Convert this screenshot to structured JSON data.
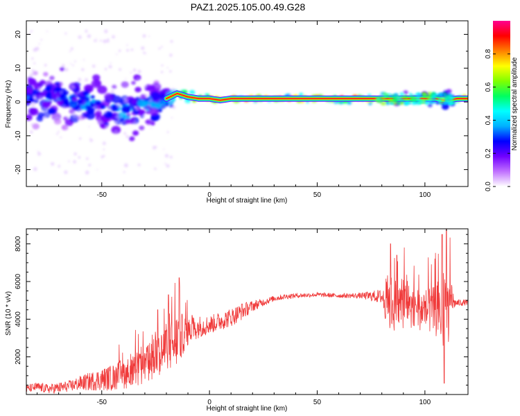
{
  "title": "PAZ1.2025.105.00.49.G28",
  "colors": {
    "snr_line": "#f03a3a",
    "band": "#e8271f",
    "frame": "#000000"
  },
  "chart_data": [
    {
      "type": "heatmap",
      "xlabel": "Height of straight line (km)",
      "ylabel": "Frequency (Hz)",
      "xlim": [
        -85,
        120
      ],
      "ylim": [
        -25,
        24
      ],
      "x_ticks": [
        -50,
        0,
        50,
        100
      ],
      "y_ticks": [
        20,
        10,
        0,
        -10,
        -20
      ],
      "x_tick_labels": [
        "-50",
        "0",
        "50",
        "100"
      ],
      "y_tick_labels": [
        "20",
        "10",
        "0",
        "-10",
        "-20"
      ],
      "colorbar": {
        "label": "Normalized spectral amplitude",
        "range": [
          0,
          1
        ],
        "ticks": [
          0.0,
          0.2,
          0.4,
          0.6,
          0.8
        ],
        "tick_labels": [
          "0.0",
          "0.2",
          "0.4",
          "0.6",
          "0.8"
        ],
        "colormap": [
          "#ffffff",
          "#c070ff",
          "#7000ff",
          "#0000ff",
          "#00b0ff",
          "#00ffff",
          "#00ff60",
          "#80ff00",
          "#ffff00",
          "#ff8000",
          "#ff0000",
          "#ff0090"
        ]
      },
      "ridge": {
        "description_free": true,
        "x": [
          -85,
          -80,
          -75,
          -70,
          -65,
          -60,
          -55,
          -50,
          -45,
          -40,
          -35,
          -30,
          -25,
          -20,
          -15,
          -10,
          -5,
          0,
          5,
          10,
          15,
          20,
          30,
          50,
          70,
          80,
          90,
          100,
          105,
          110,
          115,
          120
        ],
        "freq": [
          1.5,
          0,
          0.5,
          1.5,
          2,
          1,
          0,
          -1,
          -2,
          -3,
          -2,
          0,
          -1,
          1,
          2.5,
          1.5,
          1,
          1,
          0.5,
          1,
          1,
          1,
          1,
          1,
          1,
          1,
          1,
          1,
          1,
          0.5,
          1,
          1
        ],
        "amplitude": [
          0.3,
          0.3,
          0.35,
          0.3,
          0.35,
          0.3,
          0.35,
          0.3,
          0.35,
          0.35,
          0.3,
          0.3,
          0.35,
          0.45,
          0.7,
          0.75,
          0.8,
          0.9,
          0.95,
          0.95,
          0.95,
          0.95,
          0.95,
          0.95,
          0.95,
          0.8,
          0.6,
          0.55,
          0.5,
          0.4,
          0.75,
          0.9
        ],
        "spread_hz": [
          8,
          8,
          8,
          8,
          8,
          8,
          8,
          8,
          8,
          8,
          8,
          7,
          6,
          3,
          2,
          1.5,
          1.2,
          1,
          1,
          1,
          1,
          1,
          1,
          1,
          1,
          1.5,
          1.8,
          2,
          2,
          3,
          1,
          1
        ]
      }
    },
    {
      "type": "line",
      "xlabel": "Height of straight line (km)",
      "ylabel": "SNR (10 * v/v)",
      "xlim": [
        -85,
        120
      ],
      "ylim": [
        0,
        8800
      ],
      "x_ticks": [
        -50,
        0,
        50,
        100
      ],
      "y_ticks": [
        2000,
        4000,
        6000,
        8000
      ],
      "x_tick_labels": [
        "-50",
        "0",
        "50",
        "100"
      ],
      "y_tick_labels": [
        "2000",
        "4000",
        "6000",
        "8000"
      ],
      "series": [
        {
          "x": [
            -85,
            -80,
            -75,
            -70,
            -65,
            -60,
            -55,
            -50,
            -45,
            -40,
            -35,
            -30,
            -25,
            -20,
            -17,
            -14,
            -12,
            -10,
            -5,
            0,
            5,
            10,
            15,
            20,
            25,
            30,
            35,
            40,
            50,
            60,
            70,
            80,
            83,
            86,
            90,
            95,
            100,
            104,
            107,
            109,
            110,
            112,
            114,
            120
          ],
          "mean": [
            300,
            400,
            300,
            350,
            450,
            600,
            700,
            800,
            900,
            1100,
            1200,
            1500,
            2000,
            2400,
            2700,
            3000,
            3200,
            3400,
            3600,
            3700,
            3900,
            4100,
            4400,
            4700,
            4900,
            5100,
            5200,
            5250,
            5300,
            5250,
            5250,
            5200,
            4900,
            4700,
            4800,
            4700,
            4500,
            4400,
            4500,
            4600,
            4300,
            4900,
            4850,
            4900
          ],
          "noise": [
            200,
            250,
            250,
            300,
            300,
            400,
            500,
            600,
            700,
            800,
            900,
            1000,
            1100,
            1200,
            1400,
            1500,
            1000,
            800,
            600,
            500,
            500,
            500,
            450,
            300,
            200,
            150,
            150,
            120,
            120,
            120,
            150,
            400,
            1600,
            1500,
            1300,
            1200,
            1200,
            1300,
            1700,
            2200,
            2400,
            1200,
            200,
            150
          ],
          "peaks": [
            [
              -14,
              6200
            ],
            [
              -19,
              5300
            ],
            [
              -24,
              4500
            ],
            [
              -8,
              4200
            ],
            [
              15,
              4800
            ],
            [
              84,
              8000
            ],
            [
              87,
              7400
            ],
            [
              108,
              8500
            ],
            [
              110,
              8800
            ],
            [
              109,
              600
            ]
          ]
        }
      ]
    }
  ]
}
